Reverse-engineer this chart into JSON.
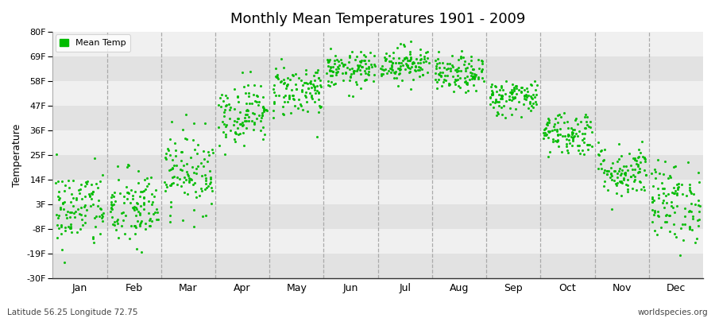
{
  "title": "Monthly Mean Temperatures 1901 - 2009",
  "ylabel": "Temperature",
  "subtitle_left": "Latitude 56.25 Longitude 72.75",
  "subtitle_right": "worldspecies.org",
  "legend_label": "Mean Temp",
  "dot_color": "#00bb00",
  "background_color": "#ffffff",
  "plot_bg_color": "#ebebeb",
  "band_color_light": "#f5f5f5",
  "band_color_dark": "#e0e0e0",
  "ytick_labels": [
    "80F",
    "69F",
    "58F",
    "47F",
    "36F",
    "25F",
    "14F",
    "3F",
    "-8F",
    "-19F",
    "-30F"
  ],
  "ytick_values": [
    80,
    69,
    58,
    47,
    36,
    25,
    14,
    3,
    -8,
    -19,
    -30
  ],
  "ylim": [
    -30,
    80
  ],
  "months": [
    "Jan",
    "Feb",
    "Mar",
    "Apr",
    "May",
    "Jun",
    "Jul",
    "Aug",
    "Sep",
    "Oct",
    "Nov",
    "Dec"
  ],
  "n_years": 109,
  "dot_size": 5,
  "month_stats": [
    {
      "mean": 1,
      "std": 9
    },
    {
      "mean": 1,
      "std": 9
    },
    {
      "mean": 18,
      "std": 9
    },
    {
      "mean": 44,
      "std": 7
    },
    {
      "mean": 54,
      "std": 6
    },
    {
      "mean": 63,
      "std": 4
    },
    {
      "mean": 66,
      "std": 4
    },
    {
      "mean": 61,
      "std": 4
    },
    {
      "mean": 51,
      "std": 4
    },
    {
      "mean": 35,
      "std": 5
    },
    {
      "mean": 18,
      "std": 6
    },
    {
      "mean": 4,
      "std": 9
    }
  ]
}
